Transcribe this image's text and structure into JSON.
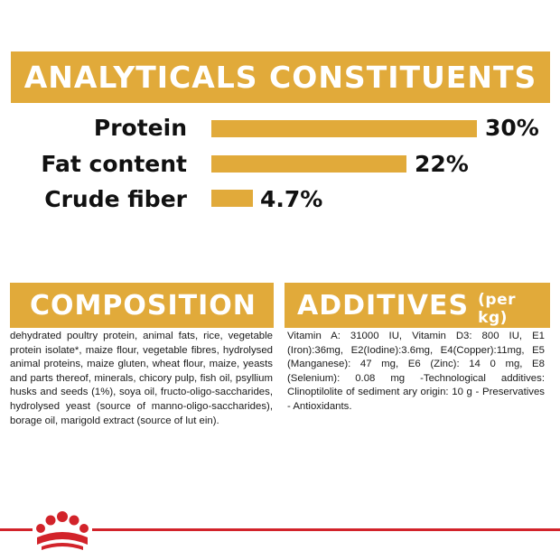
{
  "analytical": {
    "title": "ANALYTICALS CONSTITUENTS",
    "rows": [
      {
        "label": "Protein",
        "value_text": "30%",
        "value": 30
      },
      {
        "label": "Fat content",
        "value_text": "22%",
        "value": 22
      },
      {
        "label": "Crude fiber",
        "value_text": "4.7%",
        "value": 4.7
      }
    ]
  },
  "composition": {
    "title": "COMPOSITION",
    "text": "dehydrated poultry protein, animal fats, rice, vegetable protein isolate*, maize flour, vegetable fibres, hydrolysed animal proteins, maize gluten, wheat flour, maize, yeasts and parts thereof, minerals, chicory pulp, fish oil, psyllium husks and seeds (1%), soya oil, fructo-oligo-saccharides, hydrolysed yeast (source of manno-oligo-saccharides), borage oil, marigold extract (source of lut ein)."
  },
  "additives": {
    "title": "ADDITIVES",
    "subtitle": "(per kg)",
    "text": "Vitamin A: 31000 IU, Vitamin D3: 800 IU, E1 (Iron):36mg, E2(Iodine):3.6mg, E4(Copper):11mg, E5 (Manganese): 47 mg, E6 (Zinc): 14 0 mg, E8 (Selenium): 0.08 mg -Technological additives: Clinoptilolite of sediment ary origin: 10 g - Preservatives - Antioxidants."
  },
  "colors": {
    "accent": "#e1aa3a",
    "brand_red": "#d2232a"
  },
  "icons": {
    "logo": "royal-canin-crown-logo"
  }
}
